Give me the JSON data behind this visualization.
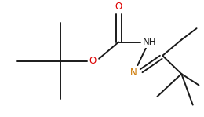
{
  "background": "#ffffff",
  "line_color": "#1a1a1a",
  "o_color": "#dd0000",
  "n_color": "#cc7700",
  "nh_color": "#1a1a1a",
  "line_width": 1.4,
  "font_size": 7.5,
  "fig_width": 2.6,
  "fig_height": 1.49,
  "dpi": 100,
  "xlim": [
    0,
    260
  ],
  "ylim": [
    0,
    149
  ]
}
